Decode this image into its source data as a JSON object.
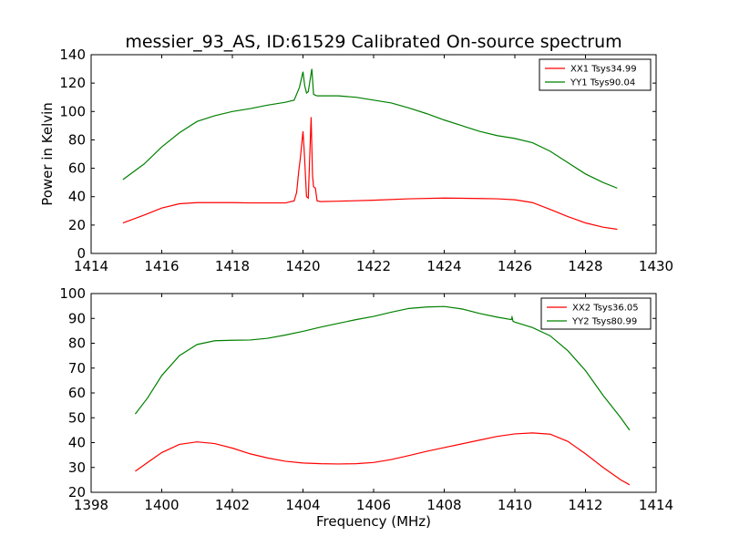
{
  "figure_title": "messier_93_AS, ID:61529 Calibrated On-source spectrum",
  "chart_data": [
    {
      "type": "line",
      "title": "messier_93_AS, ID:61529 Calibrated On-source spectrum",
      "xlabel": "",
      "ylabel": "Power in Kelvin",
      "xlim": [
        1414,
        1430
      ],
      "ylim": [
        0,
        140
      ],
      "xticks": [
        "1414",
        "1416",
        "1418",
        "1420",
        "1422",
        "1424",
        "1426",
        "1428",
        "1430"
      ],
      "yticks": [
        "0",
        "20",
        "40",
        "60",
        "80",
        "100",
        "120",
        "140"
      ],
      "grid": false,
      "legend_position": "top-right",
      "series": [
        {
          "name": "XX1 Tsys34.99",
          "color": "#ff0000",
          "x": [
            1414.9,
            1415.5,
            1416.0,
            1416.5,
            1417.0,
            1417.5,
            1418.0,
            1418.5,
            1419.0,
            1419.5,
            1419.75,
            1419.82,
            1419.88,
            1419.92,
            1420.0,
            1420.04,
            1420.1,
            1420.15,
            1420.2,
            1420.23,
            1420.27,
            1420.3,
            1420.35,
            1420.4,
            1420.5,
            1421.0,
            1422.0,
            1423.0,
            1424.0,
            1425.0,
            1425.5,
            1426.0,
            1426.5,
            1427.0,
            1427.5,
            1428.0,
            1428.5,
            1428.9
          ],
          "y": [
            21.5,
            27,
            32,
            35,
            35.8,
            35.8,
            35.8,
            35.6,
            35.6,
            35.6,
            37,
            43,
            58,
            66,
            86,
            70,
            40,
            39,
            75,
            96,
            55,
            47,
            46,
            37,
            36.5,
            36.8,
            37.5,
            38.5,
            39,
            38.7,
            38.5,
            37.8,
            35.8,
            31,
            26,
            21.5,
            18.5,
            17
          ]
        },
        {
          "name": "YY1 Tsys90.04",
          "color": "#008000",
          "x": [
            1414.9,
            1415.5,
            1416.0,
            1416.5,
            1417.0,
            1417.5,
            1418.0,
            1418.5,
            1419.0,
            1419.5,
            1419.75,
            1419.9,
            1420.0,
            1420.05,
            1420.1,
            1420.15,
            1420.2,
            1420.25,
            1420.3,
            1420.4,
            1420.6,
            1421.0,
            1421.5,
            1422.0,
            1422.5,
            1423.0,
            1423.5,
            1424.0,
            1424.5,
            1425.0,
            1425.5,
            1426.0,
            1426.5,
            1427.0,
            1427.5,
            1428.0,
            1428.5,
            1428.9
          ],
          "y": [
            52,
            63,
            75,
            85,
            93,
            97,
            100,
            102,
            104.5,
            106.5,
            108,
            117,
            128,
            118,
            113,
            114,
            122,
            130,
            112,
            111,
            111,
            111,
            110,
            108,
            106,
            102.5,
            98.5,
            94,
            90,
            86,
            83,
            81,
            78,
            72,
            64,
            56,
            50,
            46
          ]
        }
      ]
    },
    {
      "type": "line",
      "title": "",
      "xlabel": "Frequency (MHz)",
      "ylabel": "",
      "xlim": [
        1398,
        1414
      ],
      "ylim": [
        20,
        100
      ],
      "xticks": [
        "1398",
        "1400",
        "1402",
        "1404",
        "1406",
        "1408",
        "1410",
        "1412",
        "1414"
      ],
      "yticks": [
        "20",
        "30",
        "40",
        "50",
        "60",
        "70",
        "80",
        "90",
        "100"
      ],
      "grid": false,
      "legend_position": "top-right",
      "series": [
        {
          "name": "XX2 Tsys36.05",
          "color": "#ff0000",
          "x": [
            1399.25,
            1399.6,
            1400.0,
            1400.5,
            1401.0,
            1401.5,
            1402.0,
            1402.5,
            1403.0,
            1403.5,
            1404.0,
            1404.5,
            1405.0,
            1405.5,
            1406.0,
            1406.5,
            1407.0,
            1407.5,
            1408.0,
            1408.5,
            1409.0,
            1409.5,
            1410.0,
            1410.5,
            1411.0,
            1411.5,
            1412.0,
            1412.5,
            1413.0,
            1413.25
          ],
          "y": [
            28.5,
            32,
            36,
            39.3,
            40.3,
            39.6,
            37.8,
            35.5,
            33.8,
            32.5,
            31.8,
            31.5,
            31.4,
            31.5,
            32,
            33.2,
            34.8,
            36.5,
            38,
            39.5,
            41,
            42.5,
            43.5,
            43.9,
            43.4,
            40.5,
            35.5,
            30,
            25,
            23
          ]
        },
        {
          "name": "YY2 Tsys80.99",
          "color": "#008000",
          "x": [
            1399.25,
            1399.6,
            1400.0,
            1400.5,
            1401.0,
            1401.5,
            1402.0,
            1402.5,
            1403.0,
            1403.5,
            1404.0,
            1404.5,
            1405.0,
            1405.5,
            1406.0,
            1406.5,
            1407.0,
            1407.5,
            1408.0,
            1408.5,
            1409.0,
            1409.5,
            1409.9,
            1409.92,
            1409.95,
            1410.0,
            1410.5,
            1411.0,
            1411.5,
            1412.0,
            1412.5,
            1413.0,
            1413.25
          ],
          "y": [
            51.5,
            58,
            67,
            75,
            79.5,
            81,
            81.2,
            81.3,
            82,
            83.3,
            84.8,
            86.5,
            88,
            89.5,
            90.8,
            92.5,
            94,
            94.6,
            94.8,
            93.8,
            92,
            90.5,
            89.5,
            90.5,
            88.8,
            88.5,
            86.3,
            83,
            77,
            69,
            59,
            50,
            45
          ]
        }
      ]
    }
  ]
}
